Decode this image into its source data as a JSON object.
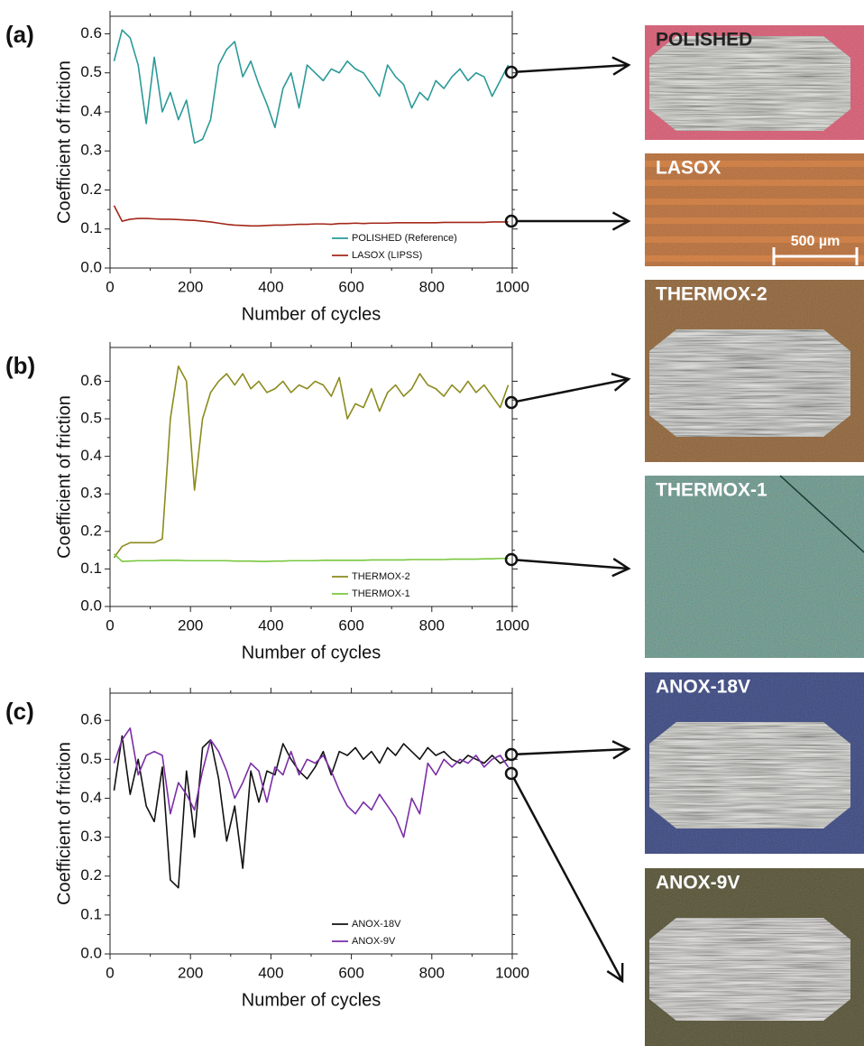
{
  "chart_data": [
    {
      "type": "line",
      "panel_label": "(a)",
      "x_label": "Number of cycles",
      "y_label": "Coefficient of friction",
      "legend": "lower right",
      "x": [
        10,
        30,
        50,
        70,
        90,
        110,
        130,
        150,
        170,
        190,
        210,
        230,
        250,
        270,
        290,
        310,
        330,
        350,
        370,
        390,
        410,
        430,
        450,
        470,
        490,
        510,
        530,
        550,
        570,
        590,
        610,
        630,
        650,
        670,
        690,
        710,
        730,
        750,
        770,
        790,
        810,
        830,
        850,
        870,
        890,
        910,
        930,
        950,
        970,
        990
      ],
      "xlim": [
        0,
        1000
      ],
      "xticks": [
        0,
        200,
        400,
        600,
        800,
        1000
      ],
      "ylim": [
        0,
        0.645
      ],
      "yticks": [
        {
          "value": 0,
          "label": "0.0"
        },
        0.1,
        0.2,
        0.3,
        0.4,
        0.5,
        0.6
      ],
      "series": [
        {
          "name": "POLISHED (Reference)",
          "color": "#2a9a98",
          "values": [
            0.53,
            0.61,
            0.59,
            0.52,
            0.37,
            0.54,
            0.4,
            0.45,
            0.38,
            0.43,
            0.32,
            0.33,
            0.38,
            0.52,
            0.56,
            0.58,
            0.49,
            0.53,
            0.47,
            0.42,
            0.36,
            0.46,
            0.5,
            0.41,
            0.52,
            0.5,
            0.48,
            0.51,
            0.5,
            0.53,
            0.51,
            0.5,
            0.47,
            0.44,
            0.52,
            0.49,
            0.47,
            0.41,
            0.45,
            0.43,
            0.48,
            0.46,
            0.49,
            0.51,
            0.48,
            0.5,
            0.49,
            0.44,
            0.48,
            0.52
          ]
        },
        {
          "name": "LASOX (LIPSS)",
          "color": "#a3281a",
          "values": [
            0.16,
            0.12,
            0.125,
            0.127,
            0.127,
            0.126,
            0.125,
            0.125,
            0.124,
            0.123,
            0.122,
            0.12,
            0.118,
            0.115,
            0.112,
            0.11,
            0.109,
            0.108,
            0.108,
            0.109,
            0.11,
            0.11,
            0.111,
            0.112,
            0.112,
            0.113,
            0.113,
            0.112,
            0.114,
            0.114,
            0.115,
            0.114,
            0.115,
            0.115,
            0.115,
            0.116,
            0.116,
            0.116,
            0.116,
            0.116,
            0.116,
            0.117,
            0.117,
            0.117,
            0.117,
            0.117,
            0.117,
            0.118,
            0.118,
            0.118
          ]
        }
      ]
    },
    {
      "type": "line",
      "panel_label": "(b)",
      "x_label": "Number of cycles",
      "y_label": "Coefficient of friction",
      "legend": "lower right",
      "x": [
        10,
        30,
        50,
        70,
        90,
        110,
        130,
        150,
        170,
        190,
        210,
        230,
        250,
        270,
        290,
        310,
        330,
        350,
        370,
        390,
        410,
        430,
        450,
        470,
        490,
        510,
        530,
        550,
        570,
        590,
        610,
        630,
        650,
        670,
        690,
        710,
        730,
        750,
        770,
        790,
        810,
        830,
        850,
        870,
        890,
        910,
        930,
        950,
        970,
        990
      ],
      "xlim": [
        0,
        1000
      ],
      "xticks": [
        0,
        200,
        400,
        600,
        800,
        1000
      ],
      "ylim": [
        0,
        0.69
      ],
      "yticks": [
        {
          "value": 0,
          "label": "0.0"
        },
        0.1,
        0.2,
        0.3,
        0.4,
        0.5,
        0.6
      ],
      "series": [
        {
          "name": "THERMOX-2",
          "color": "#8c8a1c",
          "values": [
            0.13,
            0.16,
            0.17,
            0.17,
            0.17,
            0.17,
            0.18,
            0.5,
            0.64,
            0.6,
            0.31,
            0.5,
            0.57,
            0.6,
            0.62,
            0.59,
            0.62,
            0.58,
            0.6,
            0.57,
            0.58,
            0.6,
            0.57,
            0.59,
            0.58,
            0.6,
            0.59,
            0.56,
            0.61,
            0.5,
            0.54,
            0.53,
            0.58,
            0.52,
            0.57,
            0.59,
            0.56,
            0.58,
            0.62,
            0.59,
            0.58,
            0.56,
            0.59,
            0.57,
            0.6,
            0.57,
            0.59,
            0.56,
            0.53,
            0.59
          ]
        },
        {
          "name": "THERMOX-1",
          "color": "#78c73e",
          "values": [
            0.14,
            0.12,
            0.121,
            0.122,
            0.122,
            0.122,
            0.123,
            0.123,
            0.123,
            0.122,
            0.122,
            0.122,
            0.122,
            0.122,
            0.122,
            0.121,
            0.121,
            0.121,
            0.12,
            0.12,
            0.121,
            0.121,
            0.122,
            0.122,
            0.122,
            0.122,
            0.123,
            0.123,
            0.123,
            0.123,
            0.123,
            0.123,
            0.124,
            0.124,
            0.124,
            0.124,
            0.124,
            0.125,
            0.125,
            0.125,
            0.125,
            0.125,
            0.126,
            0.126,
            0.126,
            0.126,
            0.127,
            0.127,
            0.128,
            0.128
          ]
        }
      ]
    },
    {
      "type": "line",
      "panel_label": "(c)",
      "x_label": "Number of cycles",
      "y_label": "Coefficient of friction",
      "legend": "lower right",
      "x": [
        10,
        30,
        50,
        70,
        90,
        110,
        130,
        150,
        170,
        190,
        210,
        230,
        250,
        270,
        290,
        310,
        330,
        350,
        370,
        390,
        410,
        430,
        450,
        470,
        490,
        510,
        530,
        550,
        570,
        590,
        610,
        630,
        650,
        670,
        690,
        710,
        730,
        750,
        770,
        790,
        810,
        830,
        850,
        870,
        890,
        910,
        930,
        950,
        970,
        990
      ],
      "xlim": [
        0,
        1000
      ],
      "xticks": [
        0,
        200,
        400,
        600,
        800,
        1000
      ],
      "ylim": [
        0,
        0.67
      ],
      "yticks": [
        {
          "value": 0,
          "label": "0.0"
        },
        0.1,
        0.2,
        0.3,
        0.4,
        0.5,
        0.6
      ],
      "series": [
        {
          "name": "ANOX-18V",
          "color": "#111111",
          "values": [
            0.42,
            0.56,
            0.41,
            0.5,
            0.38,
            0.34,
            0.48,
            0.19,
            0.17,
            0.47,
            0.3,
            0.53,
            0.55,
            0.45,
            0.29,
            0.38,
            0.22,
            0.47,
            0.39,
            0.47,
            0.46,
            0.54,
            0.5,
            0.47,
            0.45,
            0.48,
            0.52,
            0.46,
            0.52,
            0.51,
            0.53,
            0.5,
            0.52,
            0.49,
            0.53,
            0.51,
            0.54,
            0.52,
            0.5,
            0.53,
            0.51,
            0.52,
            0.5,
            0.49,
            0.51,
            0.5,
            0.49,
            0.51,
            0.49,
            0.5
          ]
        },
        {
          "name": "ANOX-9V",
          "color": "#7a2ea6",
          "values": [
            0.49,
            0.55,
            0.58,
            0.46,
            0.51,
            0.52,
            0.51,
            0.36,
            0.44,
            0.41,
            0.37,
            0.47,
            0.55,
            0.52,
            0.47,
            0.4,
            0.44,
            0.49,
            0.47,
            0.39,
            0.48,
            0.46,
            0.52,
            0.46,
            0.5,
            0.49,
            0.51,
            0.47,
            0.42,
            0.38,
            0.36,
            0.39,
            0.37,
            0.41,
            0.38,
            0.35,
            0.3,
            0.4,
            0.36,
            0.49,
            0.46,
            0.5,
            0.48,
            0.5,
            0.49,
            0.51,
            0.48,
            0.5,
            0.51,
            0.48
          ]
        }
      ]
    }
  ],
  "micrographs": [
    {
      "label": "POLISHED"
    },
    {
      "label": "LASOX"
    },
    {
      "label": "THERMOX-2"
    },
    {
      "label": "THERMOX-1"
    },
    {
      "label": "ANOX-18V"
    },
    {
      "label": "ANOX-9V"
    }
  ],
  "scale_bar": "500 µm"
}
